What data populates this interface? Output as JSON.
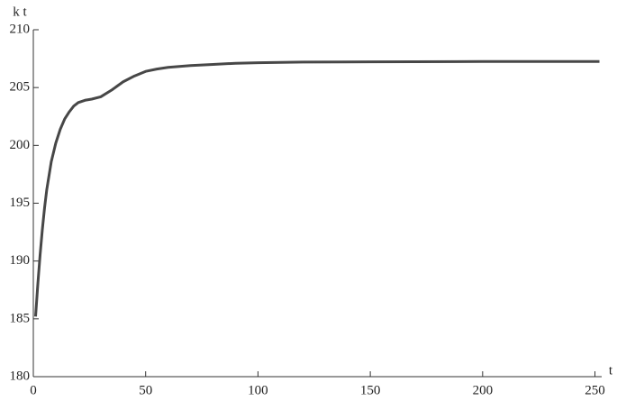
{
  "chart_data": {
    "type": "line",
    "y_label": "k t",
    "x_label": "t",
    "x": [
      1,
      2,
      3,
      4,
      5,
      6,
      8,
      10,
      12,
      14,
      16,
      18,
      20,
      23,
      26,
      30,
      35,
      40,
      45,
      50,
      55,
      60,
      70,
      80,
      90,
      100,
      120,
      150,
      200,
      252
    ],
    "values": [
      185.2,
      188.0,
      190.5,
      192.7,
      194.6,
      196.2,
      198.6,
      200.2,
      201.4,
      202.3,
      202.9,
      203.4,
      203.7,
      203.9,
      204.0,
      204.2,
      204.8,
      205.5,
      206.0,
      206.4,
      206.6,
      206.75,
      206.9,
      207.0,
      207.1,
      207.15,
      207.2,
      207.22,
      207.25,
      207.25
    ],
    "color": "#474747",
    "xlim": [
      0,
      253
    ],
    "ylim": [
      180,
      210
    ],
    "xticks": [
      0,
      50,
      100,
      150,
      200,
      250
    ],
    "yticks": [
      180,
      185,
      190,
      195,
      200,
      205,
      210
    ]
  }
}
